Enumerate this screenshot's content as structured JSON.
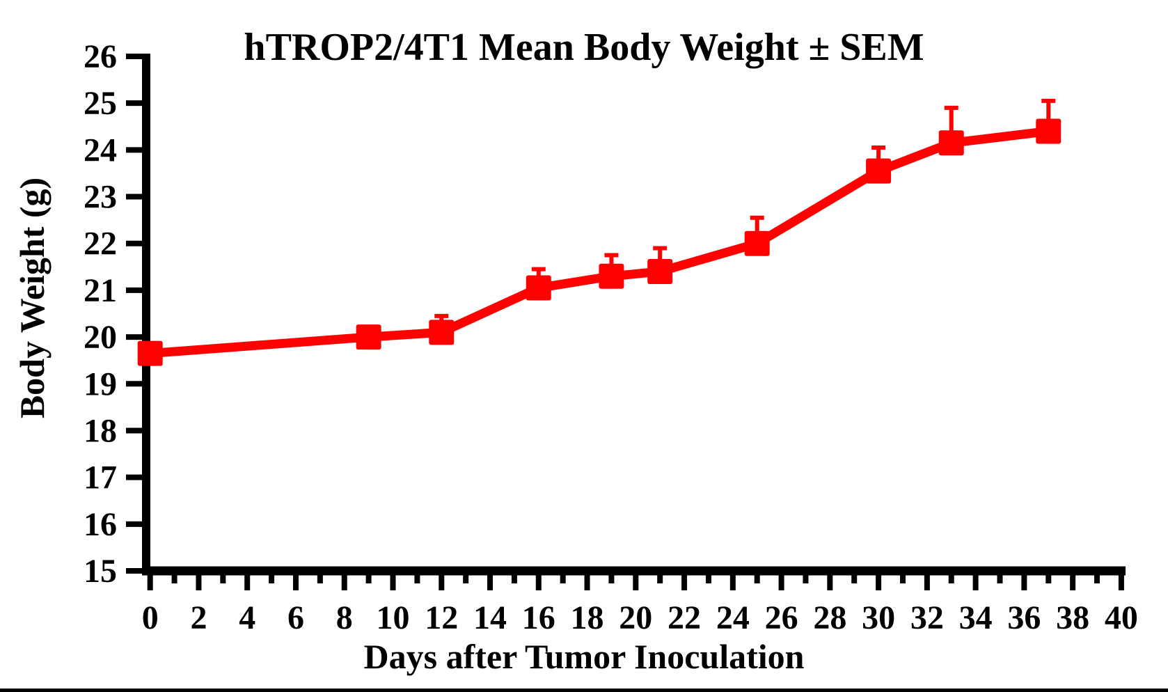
{
  "chart_data": {
    "type": "line",
    "title": "hTROP2/4T1 Mean Body Weight ± SEM",
    "grid": false,
    "legend": "none",
    "background": "#FFFFFF",
    "x_axis": {
      "label": "Days after Tumor Inoculation",
      "min": 0,
      "max": 40,
      "major_step": 2,
      "minor_step": 1,
      "tick_labels": [
        "0",
        "2",
        "4",
        "6",
        "8",
        "10",
        "12",
        "14",
        "16",
        "18",
        "20",
        "22",
        "24",
        "26",
        "28",
        "30",
        "32",
        "34",
        "36",
        "38",
        "40"
      ]
    },
    "y_axis": {
      "label": "Body Weight (g)",
      "min": 15,
      "max": 26,
      "step": 1,
      "tick_labels": [
        "15",
        "16",
        "17",
        "18",
        "19",
        "20",
        "21",
        "22",
        "23",
        "24",
        "25",
        "26"
      ]
    },
    "series": [
      {
        "name": "hTROP2/4T1",
        "color": "#FF0000",
        "marker": "square",
        "error_bars": "upper-SEM-only",
        "x": [
          0,
          9,
          12,
          16,
          19,
          21,
          25,
          30,
          33,
          37
        ],
        "y": [
          19.65,
          20.0,
          20.1,
          21.05,
          21.3,
          21.4,
          22.0,
          23.55,
          24.15,
          24.4
        ],
        "sem": [
          0,
          0,
          0.35,
          0.4,
          0.45,
          0.5,
          0.55,
          0.5,
          0.75,
          0.65
        ]
      }
    ]
  },
  "colors": {
    "series": "#FF0000",
    "axis": "#000000",
    "text": "#000000",
    "bottom_bar": "#000000"
  }
}
